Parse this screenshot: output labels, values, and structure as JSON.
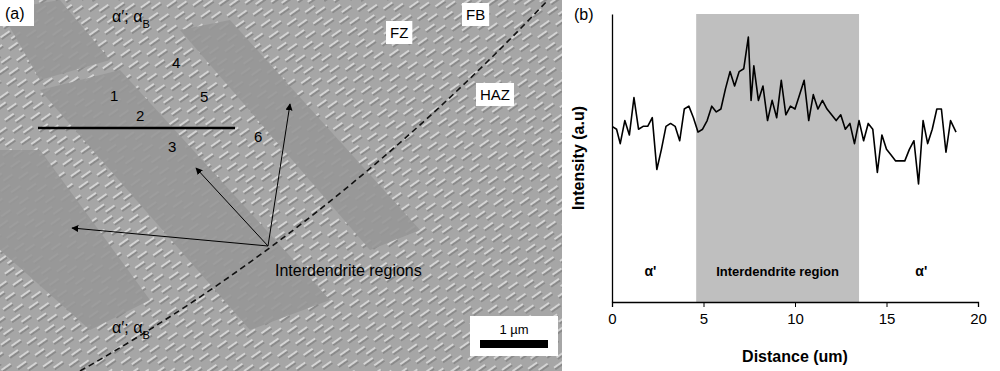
{
  "panel_a": {
    "label": "(a)",
    "phase_labels": [
      [
        "α′; α",
        "B"
      ],
      [
        "α′; α",
        "B"
      ]
    ],
    "zone_labels": [
      "FZ",
      "FB",
      "HAZ"
    ],
    "point_labels": [
      "1",
      "2",
      "3",
      "4",
      "5",
      "6"
    ],
    "annotation": "Interdendrite regions",
    "scale_bar": "1 µm"
  },
  "chart_data": {
    "type": "line",
    "panel_label": "(b)",
    "xlabel": "Distance (um)",
    "ylabel": "Intensity (a.u)",
    "x": [
      0,
      0.25,
      0.45,
      0.7,
      0.95,
      1.2,
      1.45,
      1.7,
      1.95,
      2.2,
      2.45,
      2.7,
      2.95,
      3.2,
      3.45,
      3.7,
      3.95,
      4.2,
      4.45,
      4.7,
      4.95,
      5.2,
      5.45,
      5.7,
      5.95,
      6.2,
      6.45,
      6.7,
      6.95,
      7.2,
      7.45,
      7.6,
      7.75,
      8.0,
      8.25,
      8.5,
      8.75,
      9.0,
      9.25,
      9.5,
      9.75,
      10.0,
      10.25,
      10.5,
      10.75,
      11.0,
      11.25,
      11.5,
      11.75,
      12.0,
      12.25,
      12.5,
      12.75,
      13.0,
      13.25,
      13.5,
      13.75,
      14.0,
      14.25,
      14.5,
      14.75,
      15.0,
      15.25,
      15.5,
      15.75,
      16.0,
      16.25,
      16.5,
      16.75,
      17.0,
      17.25,
      17.5,
      17.75,
      18.0,
      18.25,
      18.5,
      18.8
    ],
    "values": [
      61,
      60,
      55,
      63,
      58,
      71,
      60,
      61,
      61,
      64,
      46,
      53,
      61,
      62,
      61,
      56,
      67,
      68,
      64,
      59,
      60,
      63,
      68,
      66,
      67,
      74,
      80,
      75,
      80,
      81,
      92,
      70,
      82,
      70,
      75,
      63,
      70,
      64,
      77,
      65,
      68,
      67,
      72,
      77,
      63,
      72,
      67,
      70,
      67,
      65,
      63,
      65,
      60,
      62,
      55,
      63,
      56,
      62,
      60,
      45,
      58,
      53,
      51,
      49,
      49,
      49,
      53,
      56,
      41,
      63,
      55,
      60,
      67,
      67,
      52,
      63,
      59
    ],
    "color": "#000000",
    "xlim": [
      0,
      20
    ],
    "xticks": [
      0,
      5,
      10,
      15,
      20
    ],
    "ylim": [
      0,
      100
    ],
    "yticks": [],
    "tick_labels": "x",
    "grid": false,
    "shaded_region": {
      "x": [
        4.6,
        13.5
      ],
      "label": "Interdendrite region",
      "color": "#bfbfbf"
    },
    "annotations": [
      {
        "text": "α'",
        "x": 2.1
      },
      {
        "text": "α'",
        "x": 16.9
      }
    ]
  }
}
